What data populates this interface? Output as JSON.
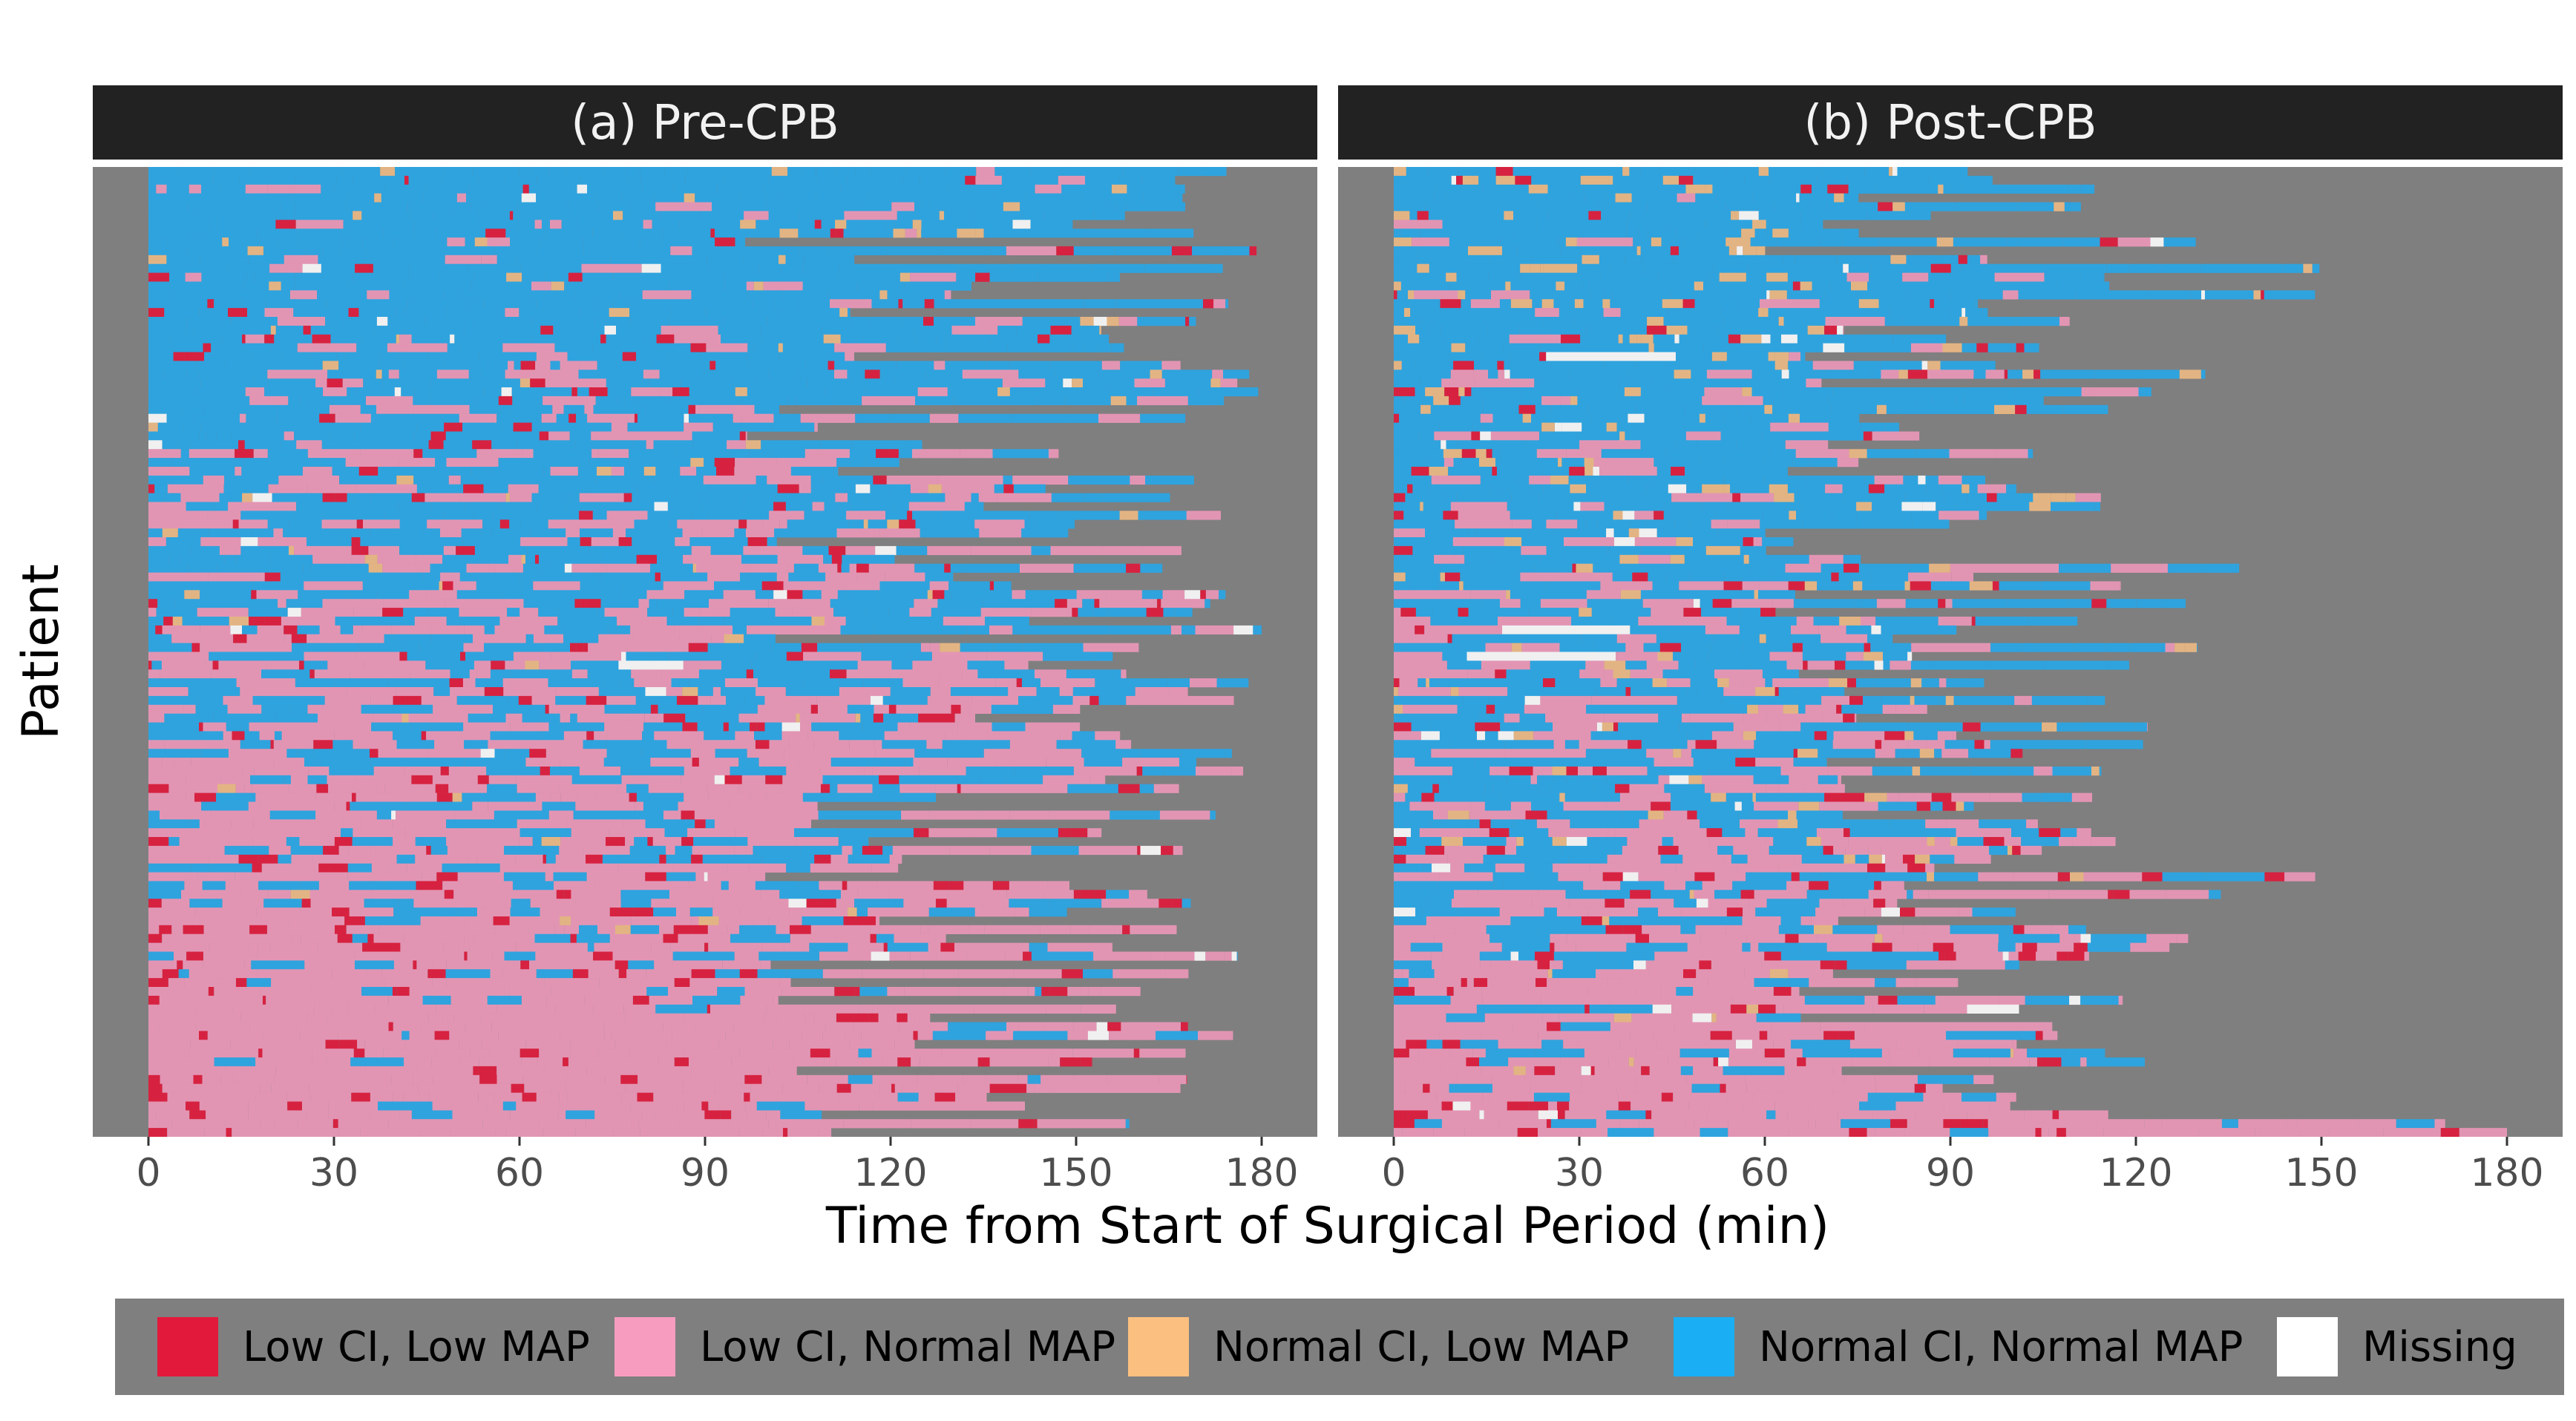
{
  "chart_data": {
    "type": "heatmap",
    "description_kind": "patient-by-time state timeline (faceted)",
    "ylabel": "Patient",
    "xlabel": "Time from Start of Surgical Period (min)",
    "x_ticks": [
      0,
      30,
      60,
      90,
      120,
      150,
      180
    ],
    "xlim": [
      -9,
      189
    ],
    "n_patients_approx": 110,
    "states": [
      {
        "name": "Low CI, Low MAP",
        "color": "#E3193B"
      },
      {
        "name": "Low CI, Normal MAP",
        "color": "#F79CBF"
      },
      {
        "name": "Normal CI, Low MAP",
        "color": "#FBBF7F"
      },
      {
        "name": "Normal CI, Normal MAP",
        "color": "#1AAFF5"
      },
      {
        "name": "Missing",
        "color": "#FFFFFF"
      }
    ],
    "panel_background": "#7F7F7F",
    "strip_background": "#222222",
    "panels": [
      {
        "title": "(a) Pre-CPB",
        "max_duration_min": 180,
        "dominant_state_top": "Normal CI, Normal MAP",
        "dominant_state_bottom": "Low CI, Normal MAP",
        "secondary_states": [
          "Low CI, Low MAP",
          "Normal CI, Low MAP",
          "Missing"
        ]
      },
      {
        "title": "(b) Post-CPB",
        "max_duration_min": 180,
        "dominant_state_top": "Normal CI, Normal MAP",
        "dominant_state_bottom": "Low CI, Normal MAP",
        "secondary_states": [
          "Normal CI, Low MAP",
          "Low CI, Low MAP",
          "Missing"
        ]
      }
    ]
  }
}
